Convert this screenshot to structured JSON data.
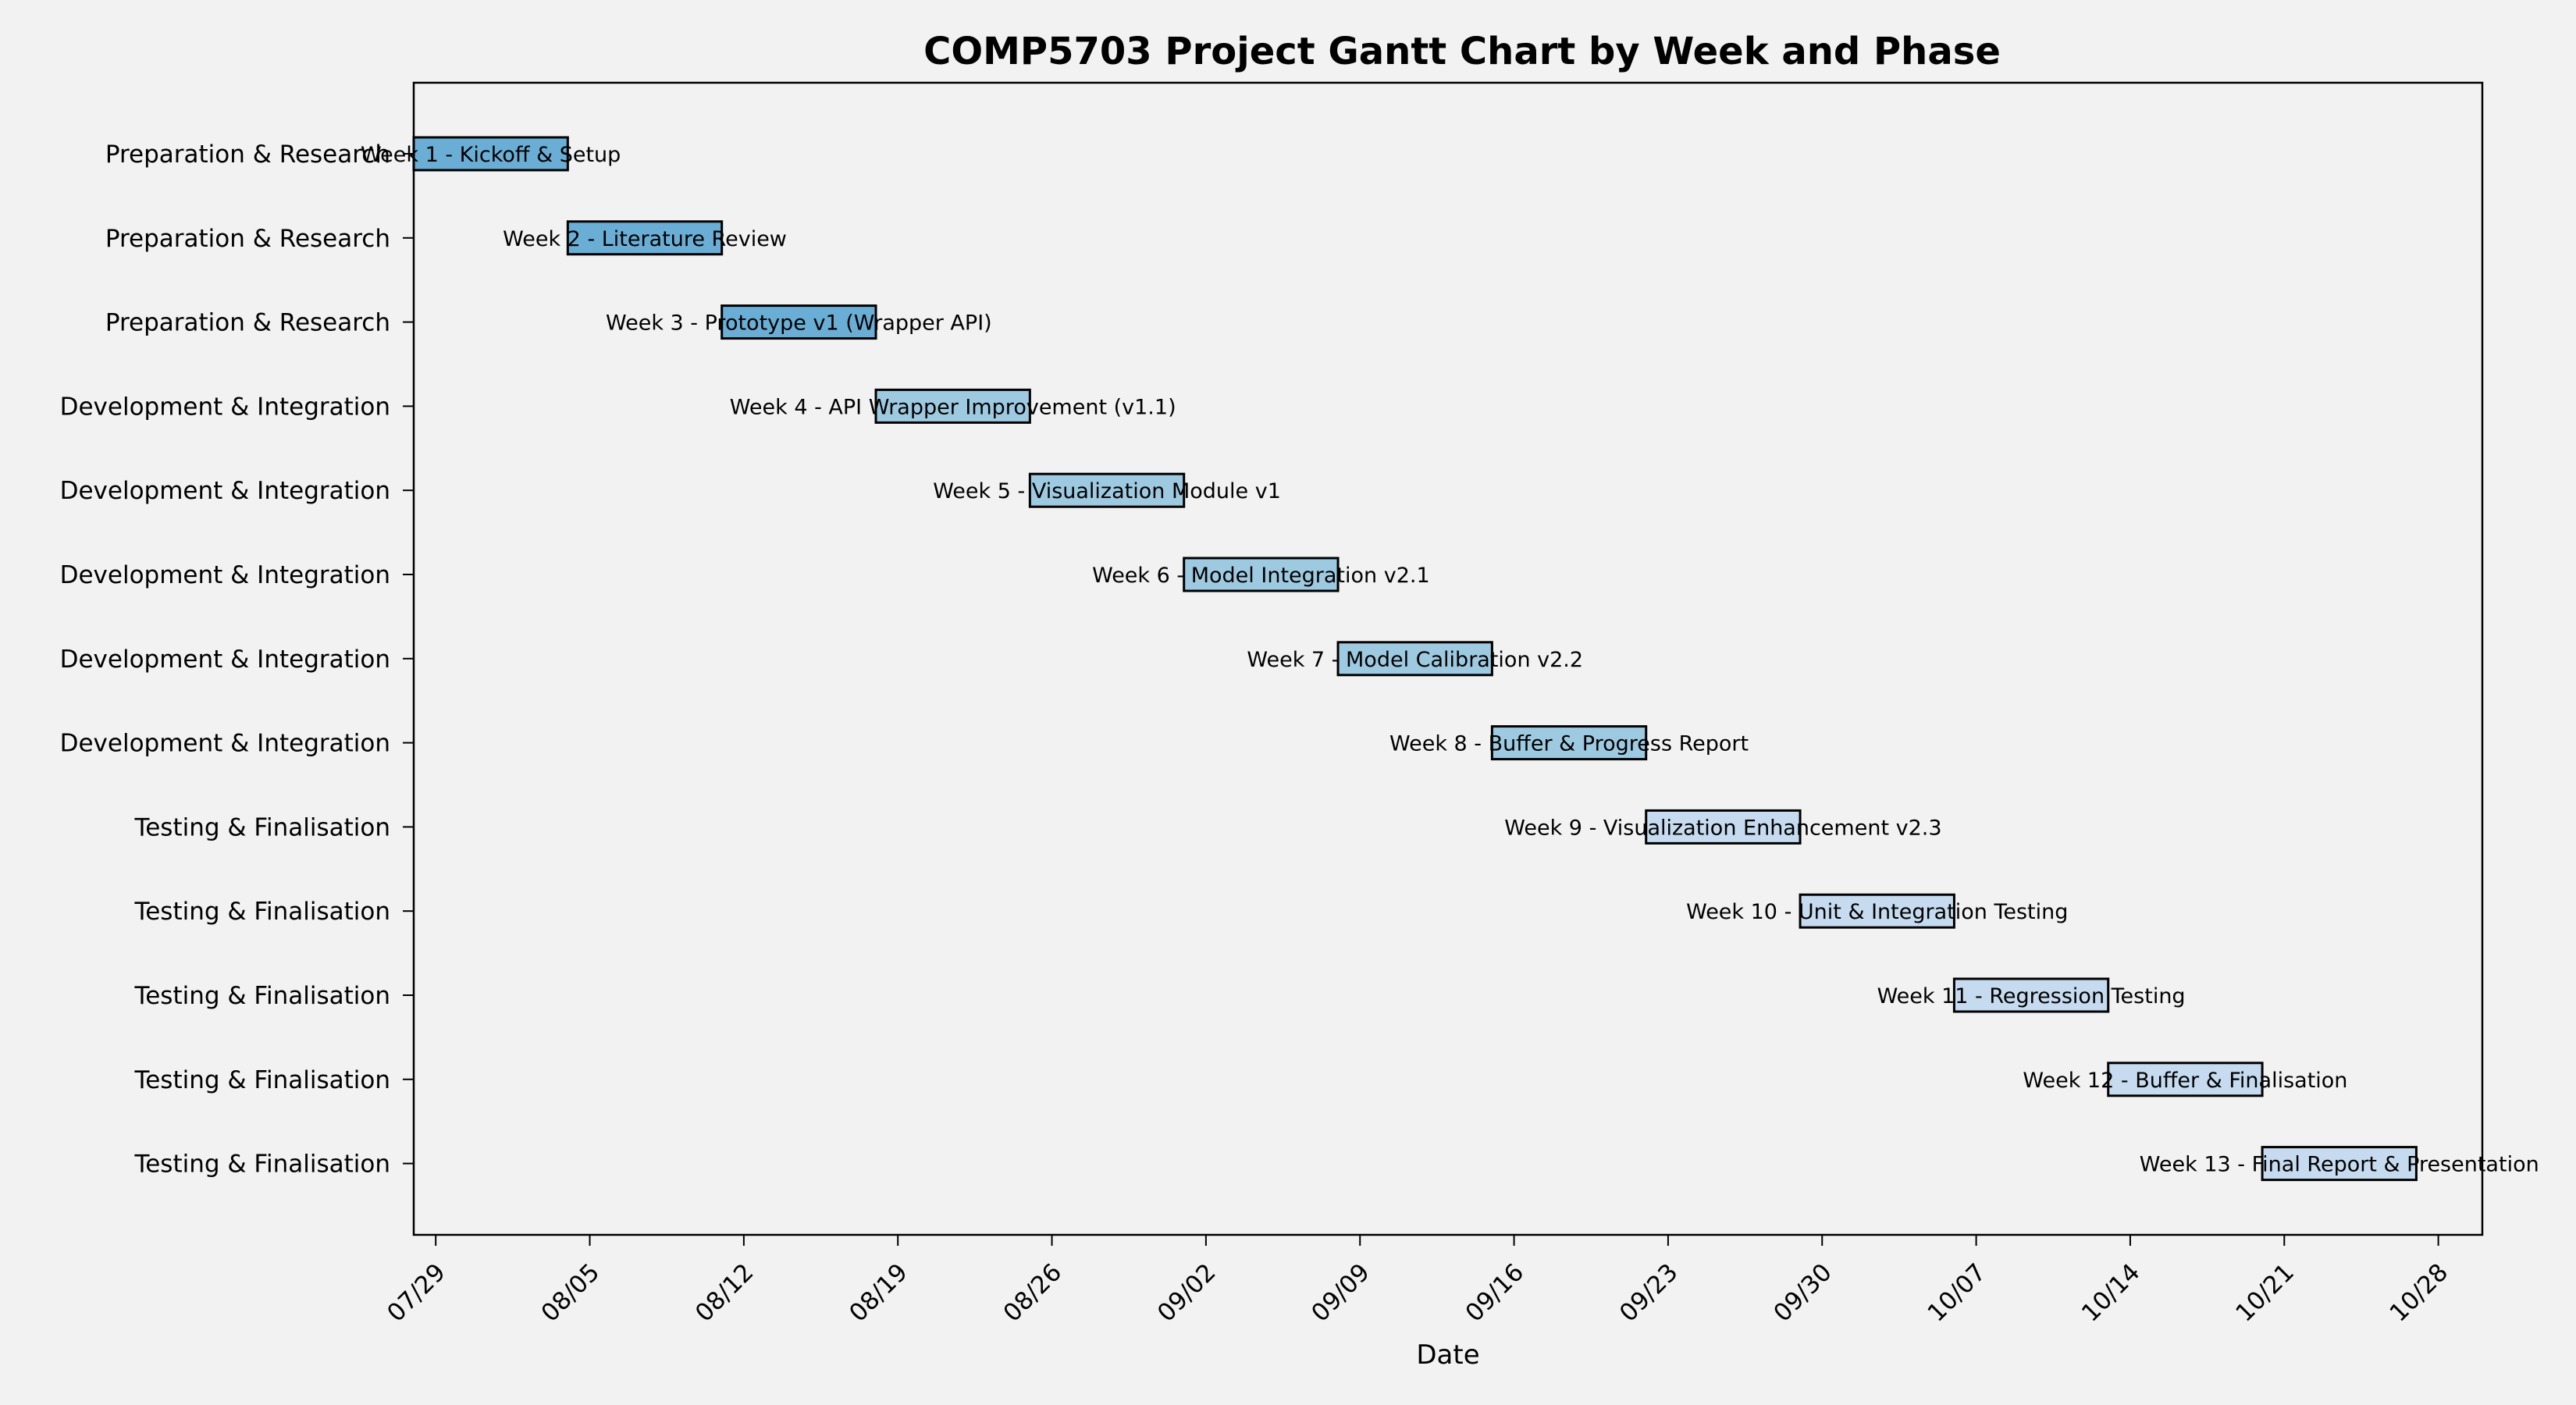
{
  "chart_data": {
    "type": "gantt",
    "title": "COMP5703 Project Gantt Chart by Week and Phase",
    "xlabel": "Date",
    "ylabel": "",
    "x_ticks": [
      "07/29",
      "08/05",
      "08/12",
      "08/19",
      "08/26",
      "09/02",
      "09/09",
      "09/16",
      "09/23",
      "09/30",
      "10/07",
      "10/14",
      "10/21",
      "10/28"
    ],
    "xlim": [
      "07/28",
      "10/30"
    ],
    "grid": false,
    "phase_colors": {
      "Preparation & Research": "#6aaed6",
      "Development & Integration": "#9ecae1",
      "Testing & Finalisation": "#c6dbef"
    },
    "tasks": [
      {
        "phase": "Preparation & Research",
        "label": "Week 1 - Kickoff & Setup",
        "start": "07/28",
        "end": "08/03"
      },
      {
        "phase": "Preparation & Research",
        "label": "Week 2 - Literature Review",
        "start": "08/04",
        "end": "08/10"
      },
      {
        "phase": "Preparation & Research",
        "label": "Week 3 - Prototype v1 (Wrapper API)",
        "start": "08/11",
        "end": "08/17"
      },
      {
        "phase": "Development & Integration",
        "label": "Week 4 - API Wrapper Improvement (v1.1)",
        "start": "08/18",
        "end": "08/24"
      },
      {
        "phase": "Development & Integration",
        "label": "Week 5 - Visualization Module v1",
        "start": "08/25",
        "end": "08/31"
      },
      {
        "phase": "Development & Integration",
        "label": "Week 6 - Model Integration v2.1",
        "start": "09/01",
        "end": "09/07"
      },
      {
        "phase": "Development & Integration",
        "label": "Week 7 - Model Calibration v2.2",
        "start": "09/08",
        "end": "09/14"
      },
      {
        "phase": "Development & Integration",
        "label": "Week 8 - Buffer & Progress Report",
        "start": "09/15",
        "end": "09/21"
      },
      {
        "phase": "Testing & Finalisation",
        "label": "Week 9 - Visualization Enhancement v2.3",
        "start": "09/22",
        "end": "09/28"
      },
      {
        "phase": "Testing & Finalisation",
        "label": "Week 10 - Unit & Integration Testing",
        "start": "09/29",
        "end": "10/05"
      },
      {
        "phase": "Testing & Finalisation",
        "label": "Week 11 - Regression Testing",
        "start": "10/06",
        "end": "10/12"
      },
      {
        "phase": "Testing & Finalisation",
        "label": "Week 12 - Buffer & Finalisation",
        "start": "10/13",
        "end": "10/19"
      },
      {
        "phase": "Testing & Finalisation",
        "label": "Week 13 - Final Report & Presentation",
        "start": "10/20",
        "end": "10/26"
      }
    ]
  }
}
